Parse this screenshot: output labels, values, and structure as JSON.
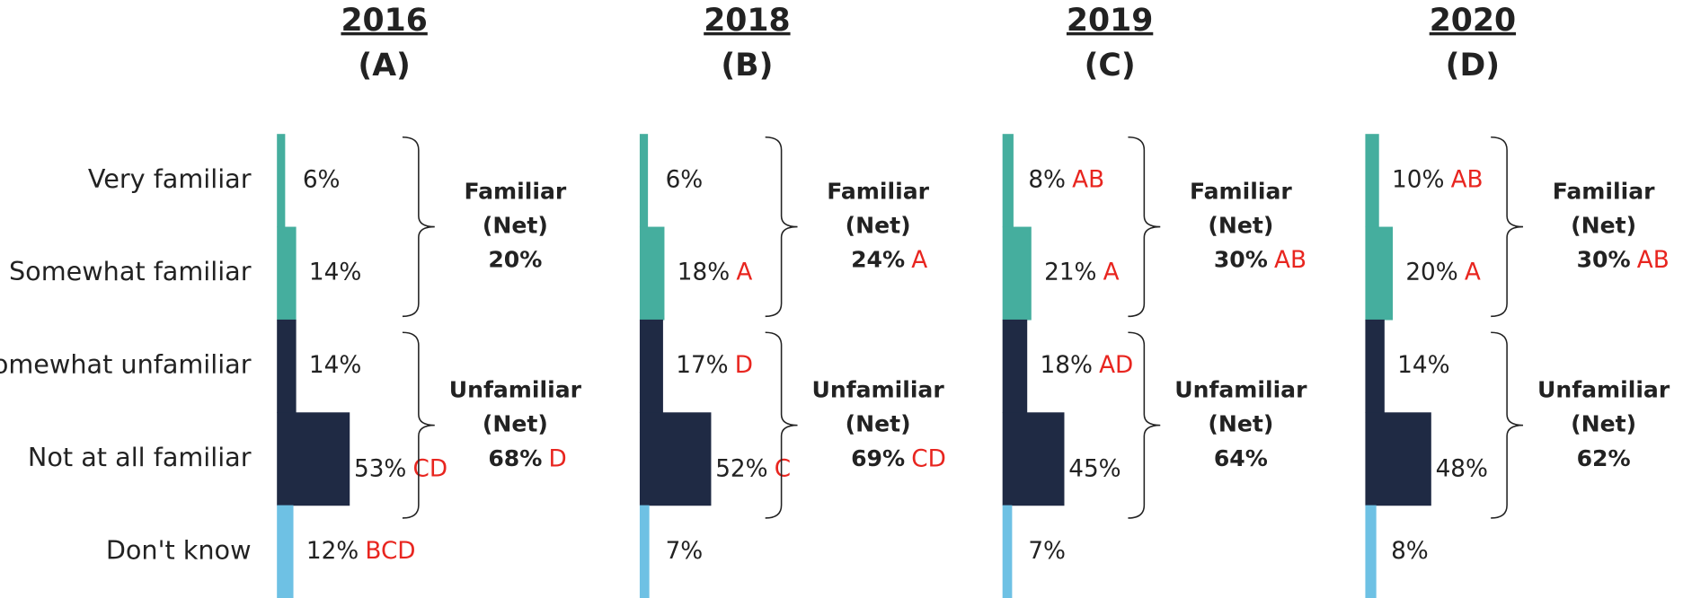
{
  "categories": [
    "Very familiar",
    "Somewhat familiar",
    "Somewhat unfamiliar",
    "Not at all familiar",
    "Don't know"
  ],
  "colors": [
    "#45ae9e",
    "#45ae9e",
    "#1f2a44",
    "#1f2a44",
    "#6ec1e4"
  ],
  "chart_data": [
    {
      "type": "bar",
      "title": "2016",
      "subtitle": "(A)",
      "values": [
        6,
        14,
        14,
        53,
        12
      ],
      "value_labels": [
        "6%",
        "14%",
        "14%",
        "53%",
        "12%"
      ],
      "sig": [
        null,
        null,
        null,
        "CD",
        "BCD"
      ],
      "nets": [
        {
          "name_lines": [
            "Familiar",
            "(Net)"
          ],
          "value": 20,
          "value_label": "20%",
          "sig": null
        },
        {
          "name_lines": [
            "Unfamiliar",
            "(Net)"
          ],
          "value": 68,
          "value_label": "68%",
          "sig": "D"
        }
      ]
    },
    {
      "type": "bar",
      "title": "2018",
      "subtitle": "(B)",
      "values": [
        6,
        18,
        17,
        52,
        7
      ],
      "value_labels": [
        "6%",
        "18%",
        "17%",
        "52%",
        "7%"
      ],
      "sig": [
        null,
        "A",
        "D",
        "C",
        null
      ],
      "nets": [
        {
          "name_lines": [
            "Familiar",
            "(Net)"
          ],
          "value": 24,
          "value_label": "24%",
          "sig": "A"
        },
        {
          "name_lines": [
            "Unfamiliar",
            "(Net)"
          ],
          "value": 69,
          "value_label": "69%",
          "sig": "CD"
        }
      ]
    },
    {
      "type": "bar",
      "title": "2019",
      "subtitle": "(C)",
      "values": [
        8,
        21,
        18,
        45,
        7
      ],
      "value_labels": [
        "8%",
        "21%",
        "18%",
        "45%",
        "7%"
      ],
      "sig": [
        "AB",
        "A",
        "AD",
        null,
        null
      ],
      "nets": [
        {
          "name_lines": [
            "Familiar",
            "(Net)"
          ],
          "value": 30,
          "value_label": "30%",
          "sig": "AB"
        },
        {
          "name_lines": [
            "Unfamiliar",
            "(Net)"
          ],
          "value": 64,
          "value_label": "64%",
          "sig": null
        }
      ]
    },
    {
      "type": "bar",
      "title": "2020",
      "subtitle": "(D)",
      "values": [
        10,
        20,
        14,
        48,
        8
      ],
      "value_labels": [
        "10%",
        "20%",
        "14%",
        "48%",
        "8%"
      ],
      "sig": [
        "AB",
        "A",
        null,
        null,
        null
      ],
      "nets": [
        {
          "name_lines": [
            "Familiar",
            "(Net)"
          ],
          "value": 30,
          "value_label": "30%",
          "sig": "AB"
        },
        {
          "name_lines": [
            "Unfamiliar",
            "(Net)"
          ],
          "value": 62,
          "value_label": "62%",
          "sig": null
        }
      ]
    }
  ]
}
